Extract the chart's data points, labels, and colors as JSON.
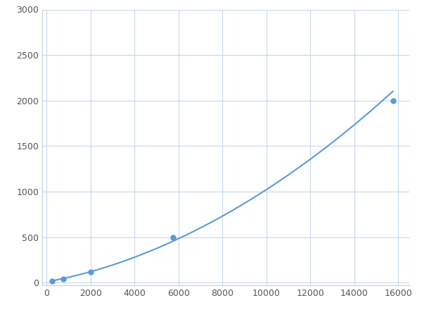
{
  "x_points": [
    250,
    750,
    2000,
    5750,
    15750
  ],
  "y_points": [
    20,
    40,
    120,
    500,
    2000
  ],
  "line_color": "#5b9bd5",
  "marker_color": "#5b9bd5",
  "marker_size": 5,
  "line_width": 1.5,
  "xlim": [
    -200,
    16500
  ],
  "ylim": [
    -30,
    3000
  ],
  "xticks": [
    0,
    2000,
    4000,
    6000,
    8000,
    10000,
    12000,
    14000,
    16000
  ],
  "yticks": [
    0,
    500,
    1000,
    1500,
    2000,
    2500,
    3000
  ],
  "grid_color": "#c8d8e8",
  "background_color": "#ffffff",
  "figsize": [
    6.0,
    4.5
  ],
  "dpi": 100
}
